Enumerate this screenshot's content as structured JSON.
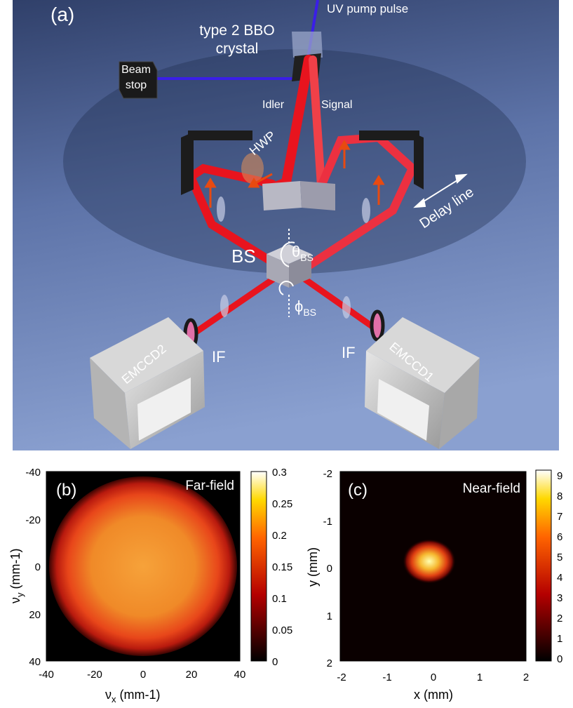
{
  "panel_a": {
    "tag": "(a)",
    "uv_pump": "UV pump pulse",
    "crystal_line1": "type 2 BBO",
    "crystal_line2": "crystal",
    "beam_stop_line1": "Beam",
    "beam_stop_line2": "stop",
    "idler": "Idler",
    "signal": "Signal",
    "hwp": "HWP",
    "delay_line": "Delay line",
    "bs": "BS",
    "theta_symbol": "θ",
    "theta_sub": "BS",
    "phi_symbol": "ϕ",
    "phi_sub": "BS",
    "if_left": "IF",
    "if_right": "IF",
    "emccd_left": "EMCCD2",
    "emccd_right": "EMCCD1"
  },
  "panel_b": {
    "tag": "(b)",
    "title": "Far-field",
    "x_ticks": [
      "-40",
      "-20",
      "0",
      "20",
      "40"
    ],
    "y_ticks": [
      "-40",
      "-20",
      "0",
      "20",
      "40"
    ],
    "xlabel_sym": "ν",
    "xlabel_sub": "x",
    "xlabel_unit": " (mm-1)",
    "ylabel_sym": "ν",
    "ylabel_sub": "y",
    "ylabel_unit": " (mm-1)",
    "colorbar_ticks": [
      "0.3",
      "0.25",
      "0.2",
      "0.15",
      "0.1",
      "0.05",
      "0"
    ]
  },
  "panel_c": {
    "tag": "(c)",
    "title": "Near-field",
    "x_ticks": [
      "-2",
      "-1",
      "0",
      "1",
      "2"
    ],
    "y_ticks": [
      "-2",
      "-1",
      "0",
      "1",
      "2"
    ],
    "xlabel": "x (mm)",
    "ylabel": "y (mm)",
    "colorbar_ticks": [
      "9",
      "8",
      "7",
      "6",
      "5",
      "4",
      "3",
      "2",
      "1",
      "0"
    ]
  },
  "colors": {
    "scene_top": "#3a4d7a",
    "scene_bottom": "#8097c9",
    "beam_red": "#e8141e",
    "pump_blue": "#3a1ee8"
  }
}
